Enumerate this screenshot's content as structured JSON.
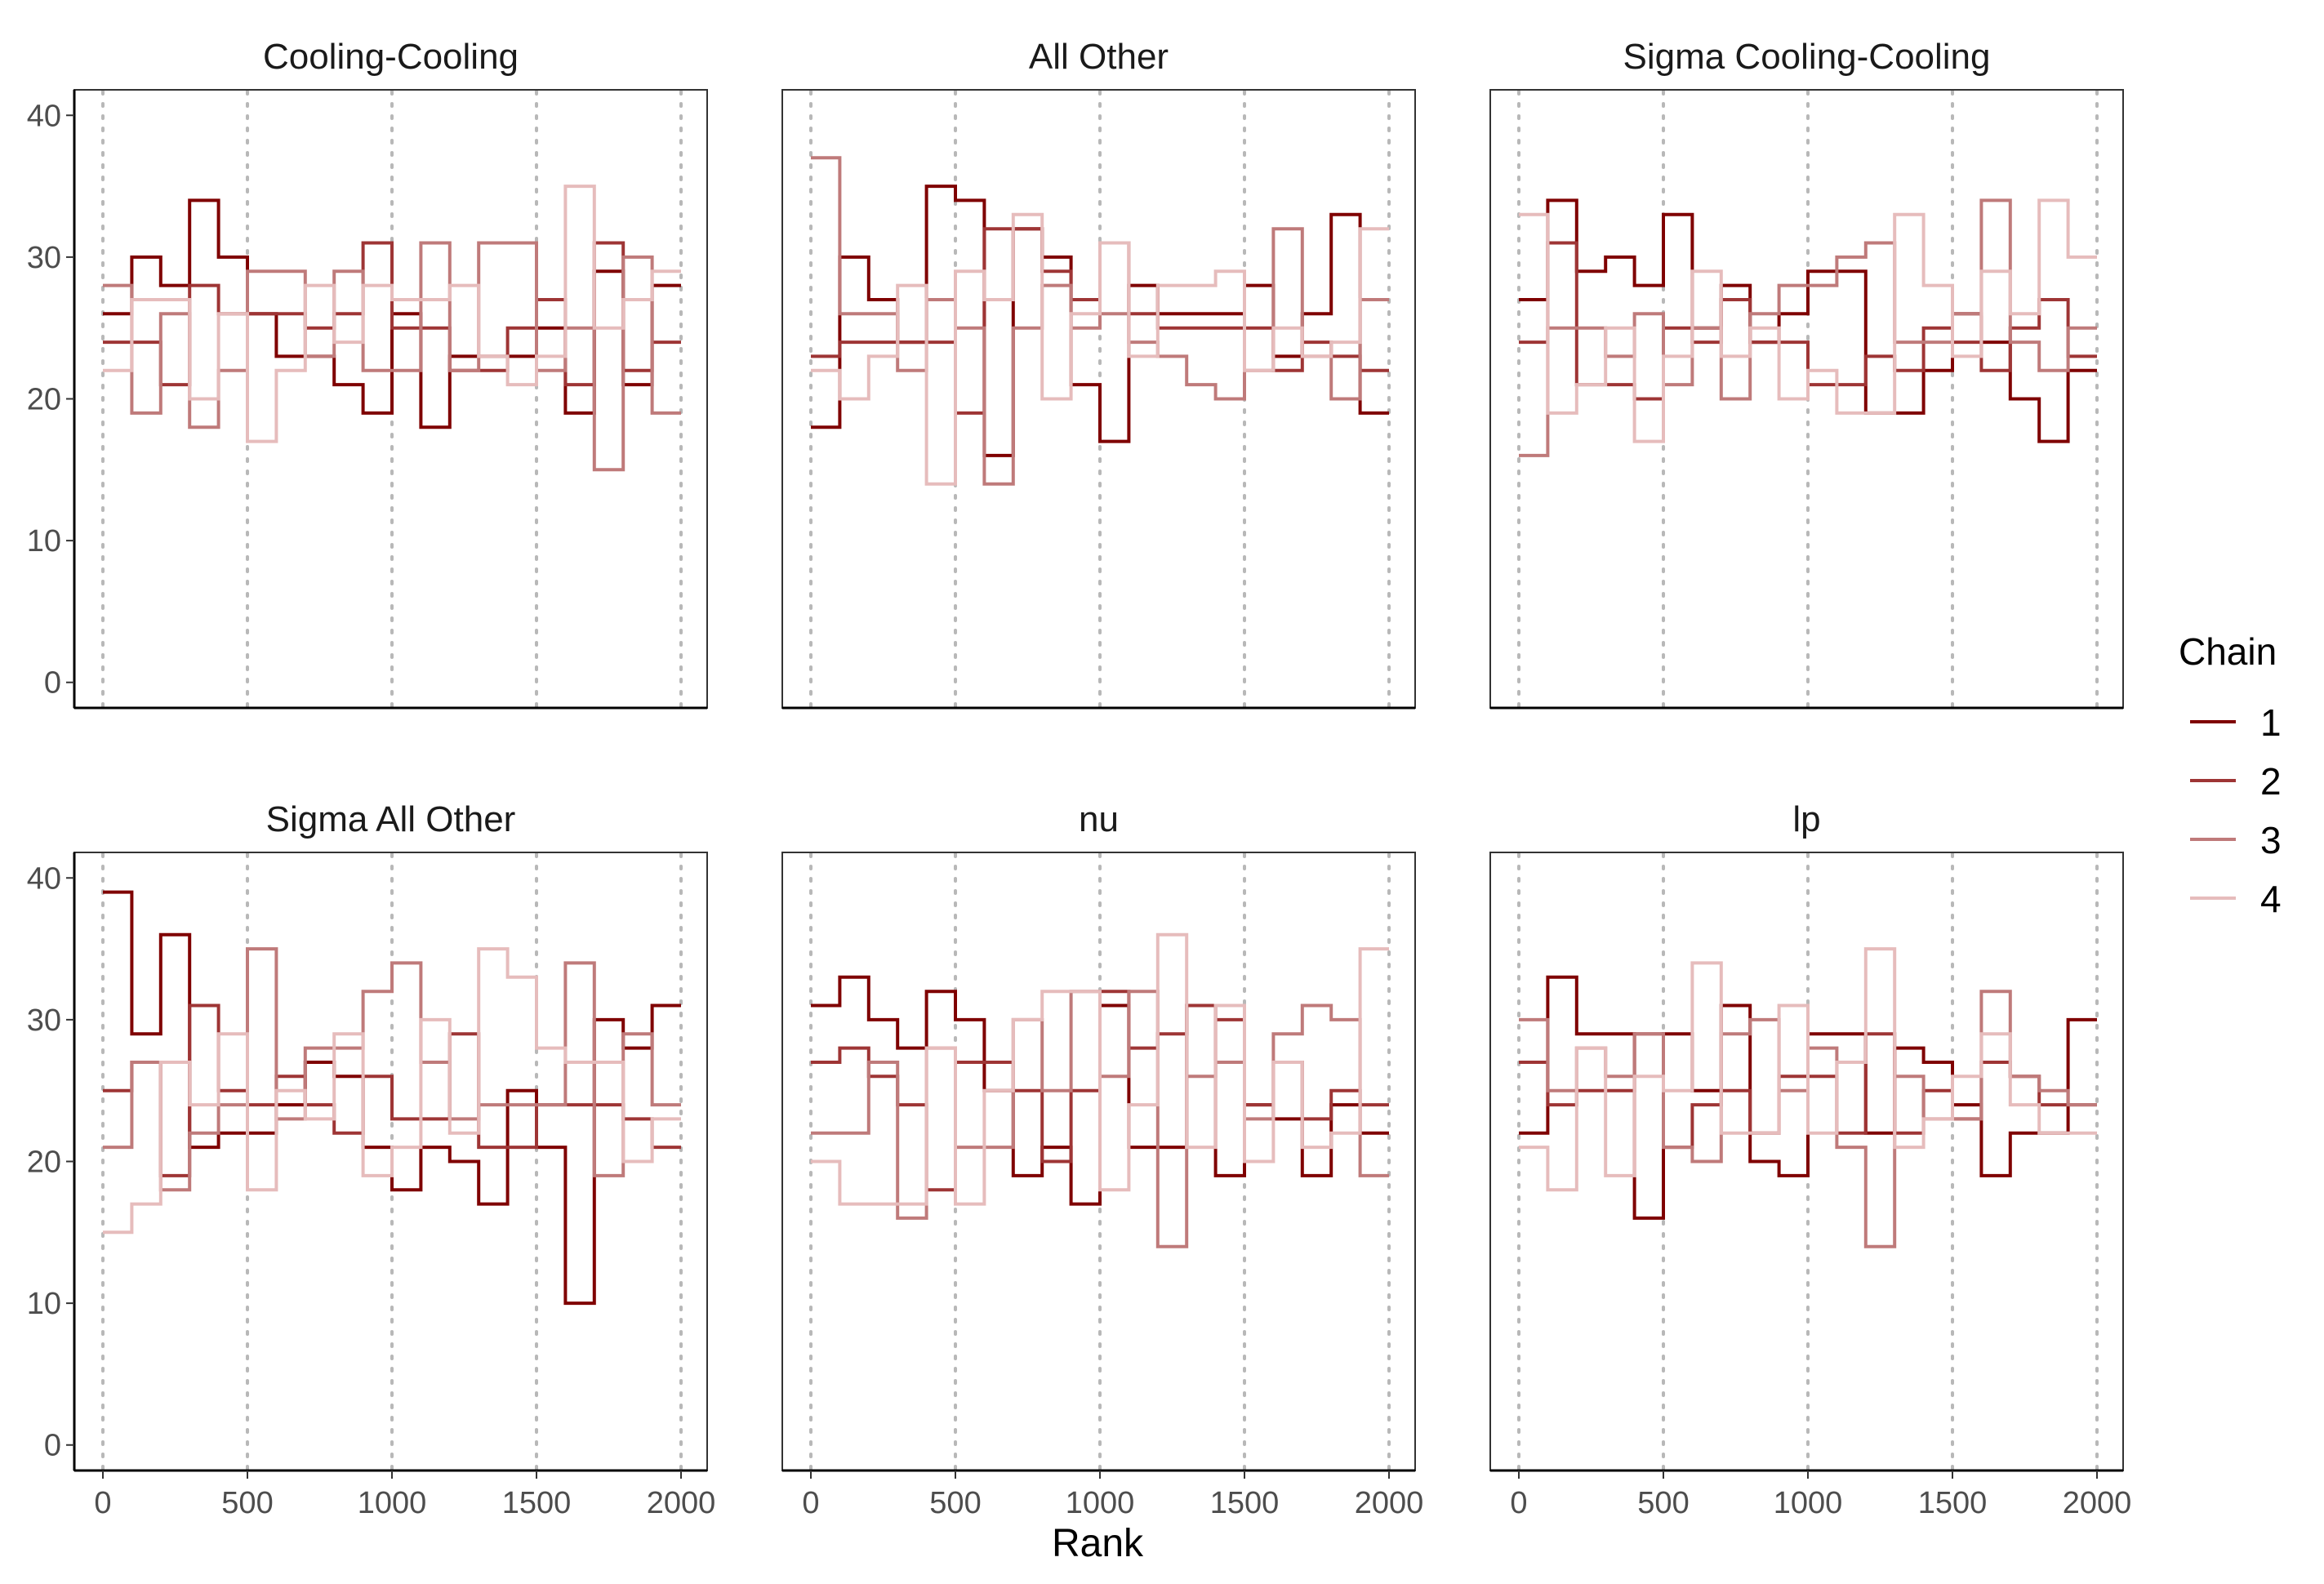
{
  "chart_data": {
    "type": "line",
    "kind": "rank histogram (step)",
    "xlabel": "Rank",
    "ylabel": "",
    "xlim": [
      0,
      2000
    ],
    "ylim": [
      0,
      40
    ],
    "x_ticks": [
      "0",
      "500",
      "1000",
      "1500",
      "2000"
    ],
    "y_ticks": [
      "0",
      "10",
      "20",
      "30",
      "40"
    ],
    "bin_edges": [
      0,
      100,
      200,
      300,
      400,
      500,
      600,
      700,
      800,
      900,
      1000,
      1100,
      1200,
      1300,
      1400,
      1500,
      1600,
      1700,
      1800,
      1900,
      2000
    ],
    "grid": "vertical dotted lines at x ticks",
    "legend": {
      "title": "Chain",
      "position": "right",
      "labels": [
        "1",
        "2",
        "3",
        "4"
      ]
    },
    "colors": {
      "1": "#7f0000",
      "2": "#9e3535",
      "3": "#bf7a7a",
      "4": "#e6bcbc"
    },
    "panels": [
      {
        "title": "Cooling-Cooling",
        "series": [
          {
            "name": "1",
            "values": [
              26,
              30,
              28,
              34,
              30,
              26,
              23,
              23,
              21,
              19,
              26,
              18,
              23,
              23,
              23,
              25,
              19,
              29,
              21,
              28
            ]
          },
          {
            "name": "2",
            "values": [
              24,
              24,
              21,
              28,
              26,
              26,
              26,
              25,
              26,
              31,
              25,
              25,
              22,
              22,
              25,
              27,
              21,
              31,
              22,
              24
            ]
          },
          {
            "name": "3",
            "values": [
              28,
              19,
              26,
              18,
              22,
              29,
              29,
              23,
              29,
              22,
              22,
              31,
              22,
              31,
              31,
              22,
              25,
              15,
              30,
              19
            ]
          },
          {
            "name": "4",
            "values": [
              22,
              27,
              27,
              20,
              26,
              17,
              22,
              28,
              24,
              28,
              27,
              27,
              28,
              23,
              21,
              23,
              35,
              25,
              27,
              29
            ]
          }
        ]
      },
      {
        "title": "All Other",
        "series": [
          {
            "name": "1",
            "values": [
              18,
              30,
              27,
              24,
              35,
              34,
              16,
              32,
              30,
              21,
              17,
              28,
              26,
              26,
              26,
              28,
              23,
              26,
              33,
              19
            ]
          },
          {
            "name": "2",
            "values": [
              23,
              24,
              24,
              24,
              24,
              19,
              32,
              32,
              29,
              27,
              31,
              26,
              25,
              25,
              25,
              25,
              22,
              24,
              23,
              22
            ]
          },
          {
            "name": "3",
            "values": [
              37,
              26,
              26,
              22,
              27,
              25,
              14,
              25,
              28,
              25,
              26,
              24,
              23,
              21,
              20,
              22,
              32,
              23,
              20,
              27
            ]
          },
          {
            "name": "4",
            "values": [
              22,
              20,
              23,
              28,
              14,
              29,
              27,
              33,
              20,
              26,
              31,
              23,
              28,
              28,
              29,
              22,
              25,
              23,
              24,
              32
            ]
          }
        ]
      },
      {
        "title": "Sigma Cooling-Cooling",
        "series": [
          {
            "name": "1",
            "values": [
              27,
              34,
              29,
              30,
              28,
              33,
              25,
              28,
              24,
              26,
              29,
              29,
              19,
              19,
              22,
              26,
              24,
              20,
              17,
              22
            ]
          },
          {
            "name": "2",
            "values": [
              24,
              31,
              21,
              21,
              20,
              25,
              24,
              27,
              24,
              24,
              21,
              21,
              23,
              22,
              25,
              24,
              22,
              25,
              27,
              23
            ]
          },
          {
            "name": "3",
            "values": [
              16,
              25,
              25,
              23,
              26,
              21,
              25,
              20,
              26,
              28,
              28,
              30,
              31,
              24,
              24,
              26,
              34,
              24,
              22,
              25
            ]
          },
          {
            "name": "4",
            "values": [
              33,
              19,
              21,
              25,
              17,
              23,
              29,
              23,
              25,
              20,
              22,
              19,
              19,
              33,
              28,
              23,
              29,
              26,
              34,
              30
            ]
          }
        ]
      },
      {
        "title": "Sigma All Other",
        "series": [
          {
            "name": "1",
            "values": [
              39,
              29,
              36,
              21,
              22,
              22,
              24,
              27,
              26,
              21,
              18,
              21,
              20,
              17,
              25,
              21,
              10,
              30,
              28,
              31
            ]
          },
          {
            "name": "2",
            "values": [
              25,
              27,
              19,
              31,
              25,
              24,
              26,
              24,
              22,
              26,
              23,
              23,
              29,
              21,
              21,
              24,
              24,
              24,
              23,
              21
            ]
          },
          {
            "name": "3",
            "values": [
              21,
              27,
              18,
              22,
              24,
              35,
              23,
              28,
              28,
              32,
              34,
              27,
              23,
              24,
              24,
              24,
              34,
              19,
              29,
              24
            ]
          },
          {
            "name": "4",
            "values": [
              15,
              17,
              27,
              24,
              29,
              18,
              25,
              23,
              29,
              19,
              21,
              30,
              22,
              35,
              33,
              28,
              27,
              27,
              20,
              23
            ]
          }
        ]
      },
      {
        "title": "nu",
        "series": [
          {
            "name": "1",
            "values": [
              31,
              33,
              30,
              28,
              32,
              30,
              25,
              19,
              21,
              17,
              31,
              21,
              21,
              31,
              19,
              24,
              23,
              19,
              24,
              22
            ]
          },
          {
            "name": "2",
            "values": [
              27,
              28,
              26,
              24,
              18,
              27,
              27,
              25,
              20,
              25,
              32,
              28,
              29,
              31,
              30,
              24,
              27,
              23,
              25,
              24
            ]
          },
          {
            "name": "3",
            "values": [
              22,
              22,
              27,
              16,
              28,
              21,
              21,
              30,
              25,
              32,
              26,
              32,
              14,
              26,
              27,
              23,
              29,
              31,
              30,
              19
            ]
          },
          {
            "name": "4",
            "values": [
              20,
              17,
              17,
              17,
              28,
              17,
              25,
              30,
              32,
              32,
              18,
              24,
              36,
              21,
              31,
              20,
              27,
              21,
              22,
              35
            ]
          }
        ]
      },
      {
        "title": "lp",
        "series": [
          {
            "name": "1",
            "values": [
              22,
              33,
              29,
              29,
              16,
              29,
              25,
              31,
              20,
              19,
              29,
              29,
              22,
              28,
              27,
              24,
              19,
              22,
              22,
              30
            ]
          },
          {
            "name": "2",
            "values": [
              27,
              24,
              25,
              25,
              29,
              21,
              24,
              25,
              22,
              26,
              26,
              22,
              29,
              22,
              25,
              23,
              27,
              26,
              24,
              24
            ]
          },
          {
            "name": "3",
            "values": [
              30,
              25,
              28,
              26,
              29,
              21,
              20,
              29,
              30,
              25,
              28,
              21,
              14,
              26,
              23,
              23,
              32,
              26,
              25,
              24
            ]
          },
          {
            "name": "4",
            "values": [
              21,
              18,
              28,
              19,
              26,
              25,
              34,
              22,
              22,
              31,
              22,
              27,
              35,
              21,
              23,
              26,
              29,
              24,
              22,
              22
            ]
          }
        ]
      }
    ]
  }
}
